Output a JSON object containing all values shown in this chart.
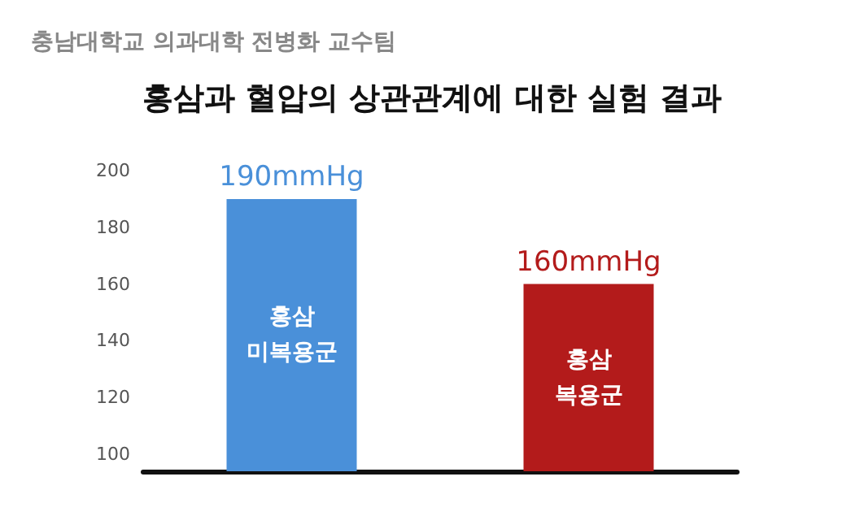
{
  "chart_data": {
    "type": "bar",
    "title": "홍삼과 혈압의 상관관계에 대한 실험 결과",
    "subtitle": "충남대학교 의과대학 전병화 교수팀",
    "categories": [
      "홍삼\n미복용군",
      "홍삼\n복용군"
    ],
    "values": [
      190,
      160
    ],
    "colors": [
      "#4a90d9",
      "#b31b1b"
    ],
    "value_labels": [
      "190mmHg",
      "160mmHg"
    ],
    "ylim": [
      94,
      200
    ],
    "yticks": [
      100,
      120,
      140,
      160,
      180,
      200
    ],
    "grid": false
  }
}
